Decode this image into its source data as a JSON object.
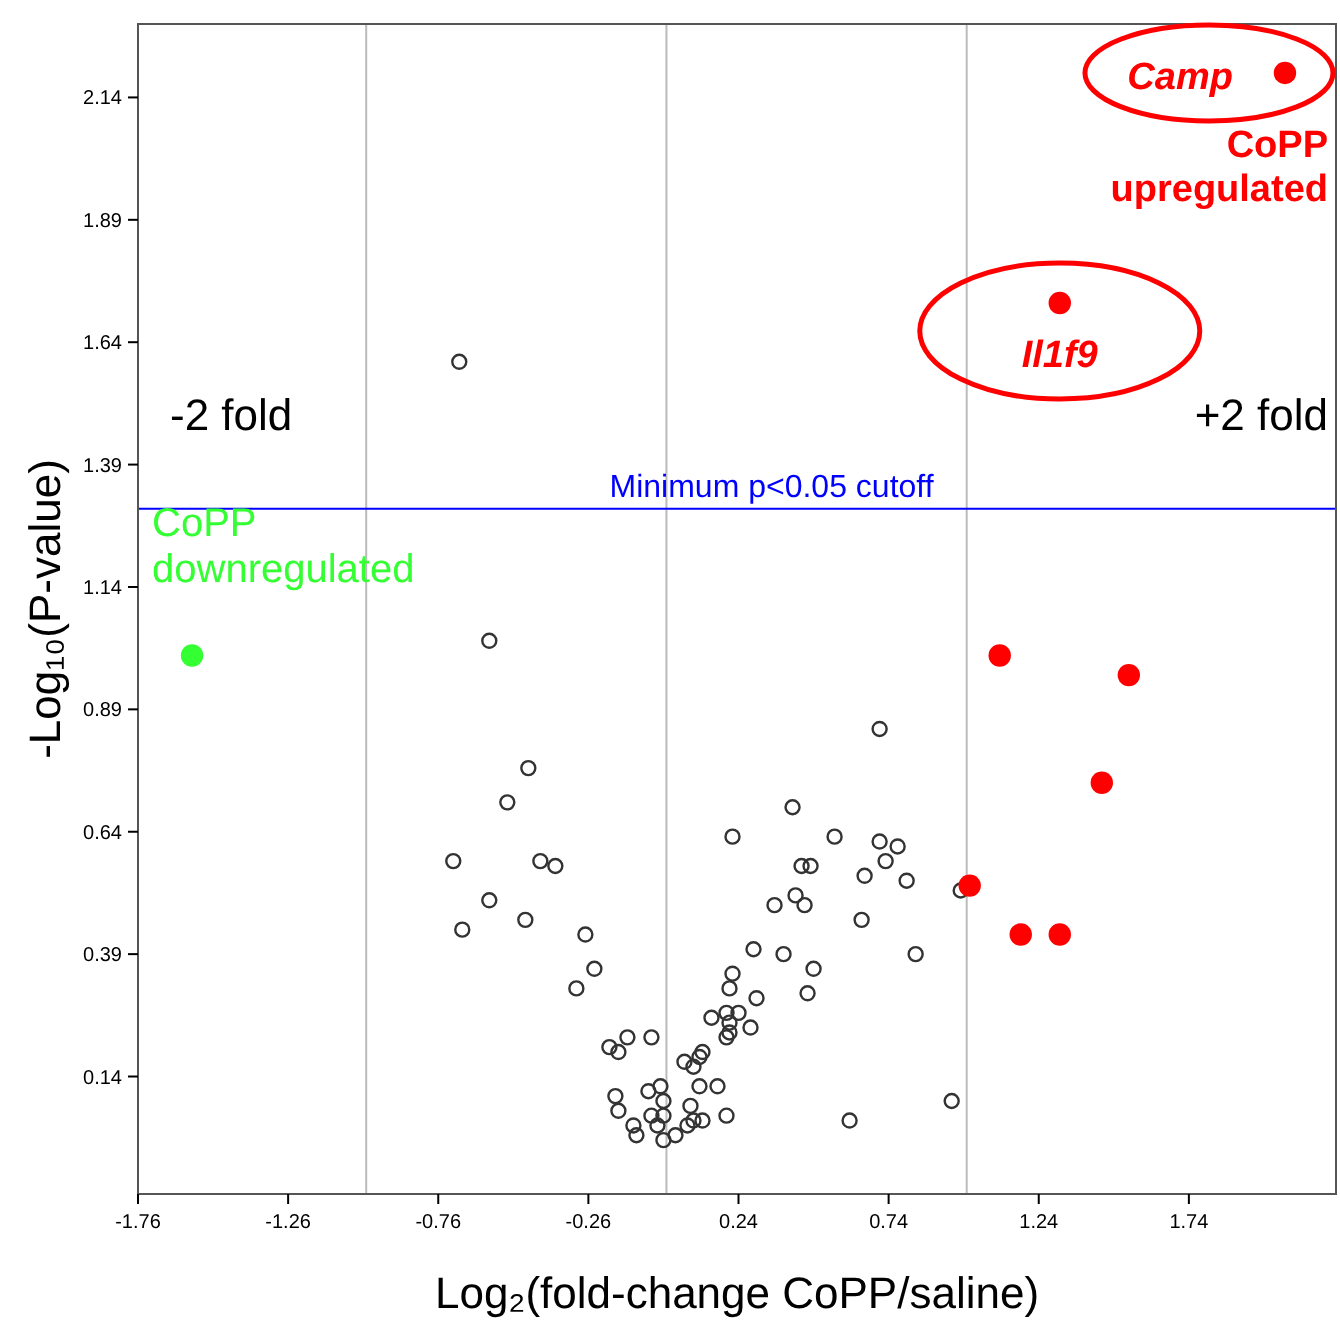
{
  "chart_data": {
    "type": "scatter",
    "xlabel": "Log₂(fold-change CoPP/saline)",
    "ylabel": "-Log₁₀(P-value)",
    "xlim": [
      -1.76,
      2.23
    ],
    "ylim": [
      -0.1,
      2.29
    ],
    "xticks": [
      -1.76,
      -1.26,
      -0.76,
      -0.26,
      0.24,
      0.74,
      1.24,
      1.74
    ],
    "yticks": [
      0.14,
      0.39,
      0.64,
      0.89,
      1.14,
      1.39,
      1.64,
      1.89,
      2.14
    ],
    "marker": "circle",
    "grid": false,
    "series": [
      {
        "color": "#333333",
        "x": [
          -0.69,
          -0.59,
          0.71,
          -0.46,
          -0.53,
          -0.71,
          -0.42,
          -0.37,
          -0.59,
          -0.68,
          -0.47,
          -0.27,
          -0.24,
          -0.3,
          0.42,
          0.22,
          0.56,
          0.71,
          0.77,
          0.73,
          0.45,
          0.48,
          0.66,
          0.8,
          0.98,
          0.43,
          0.46,
          0.36,
          0.65,
          0.29,
          0.39,
          0.49,
          0.83,
          0.22,
          0.21,
          0.47,
          0.3,
          0.15,
          0.2,
          0.24,
          0.21,
          0.21,
          0.2,
          0.28,
          -0.05,
          -0.13,
          -0.19,
          -0.16,
          0.12,
          0.11,
          0.06,
          0.09,
          0.11,
          0.17,
          -0.02,
          -0.06,
          -0.17,
          -0.01,
          -0.16,
          0.08,
          -0.05,
          -0.01,
          0.2,
          -0.11,
          -0.03,
          0.07,
          0.12,
          0.09,
          -0.1,
          -0.01,
          0.03,
          0.61,
          0.95
        ],
        "values": [
          1.6,
          1.03,
          0.85,
          0.77,
          0.7,
          0.58,
          0.58,
          0.57,
          0.5,
          0.44,
          0.46,
          0.43,
          0.36,
          0.32,
          0.69,
          0.63,
          0.63,
          0.62,
          0.61,
          0.58,
          0.57,
          0.57,
          0.55,
          0.54,
          0.52,
          0.51,
          0.49,
          0.49,
          0.46,
          0.4,
          0.39,
          0.36,
          0.39,
          0.35,
          0.32,
          0.31,
          0.3,
          0.26,
          0.27,
          0.27,
          0.25,
          0.23,
          0.22,
          0.24,
          0.22,
          0.22,
          0.2,
          0.19,
          0.19,
          0.18,
          0.17,
          0.16,
          0.12,
          0.12,
          0.12,
          0.11,
          0.1,
          0.09,
          0.07,
          0.08,
          0.06,
          0.06,
          0.06,
          0.04,
          0.04,
          0.04,
          0.05,
          0.05,
          0.02,
          0.01,
          0.02,
          0.05,
          0.09
        ]
      },
      {
        "color": "#ff0000",
        "x": [
          2.06,
          1.31,
          1.11,
          1.54,
          1.45,
          1.01,
          1.18,
          1.31
        ],
        "values": [
          2.19,
          1.72,
          1.0,
          0.96,
          0.74,
          0.53,
          0.43,
          0.43
        ]
      },
      {
        "color": "#33ff33",
        "x": [
          -1.58
        ],
        "values": [
          1.0
        ]
      }
    ],
    "ref_lines": [
      {
        "axis": "x",
        "value": -1,
        "color": "#bbbbbb"
      },
      {
        "axis": "x",
        "value": 0,
        "color": "#bbbbbb"
      },
      {
        "axis": "x",
        "value": 1,
        "color": "#bbbbbb"
      },
      {
        "axis": "y",
        "value": 1.3,
        "label": "Minimum p<0.05 cutoff",
        "color": "#0000ff"
      }
    ],
    "annotations": [
      {
        "text": "CoPP downregulated",
        "x": -1.58,
        "y": 1.0
      },
      {
        "text": "CoPP upregulated",
        "x": 2.06,
        "y": 2.19
      },
      {
        "text": "Camp",
        "x": 2.06,
        "y": 2.19
      },
      {
        "text": "Il1f9",
        "x": 1.31,
        "y": 1.72
      },
      "-2 fold",
      "+2 fold"
    ]
  }
}
